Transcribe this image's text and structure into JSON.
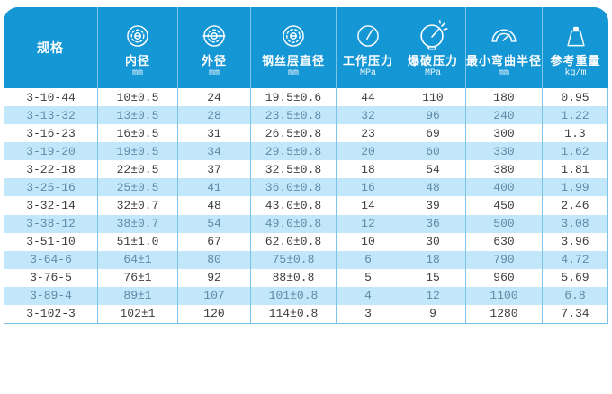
{
  "colors": {
    "header-blue": "#1596d5",
    "stripe-blue": "#c2e6fa",
    "line-blue": "#7ec3ec",
    "text-dark": "#3d3d3d",
    "text-blue": "#5d8ba5",
    "page-bg": "#ffffff"
  },
  "table": {
    "columns": [
      {
        "label": "规格",
        "unit": "",
        "icon": "none"
      },
      {
        "label": "内径",
        "unit": "mm",
        "icon": "inner-diameter-icon"
      },
      {
        "label": "外径",
        "unit": "mm",
        "icon": "outer-diameter-icon"
      },
      {
        "label": "钢丝层直径",
        "unit": "mm",
        "icon": "wire-layer-diameter-icon"
      },
      {
        "label": "工作压力",
        "unit": "MPa",
        "icon": "working-pressure-gauge-icon"
      },
      {
        "label": "爆破压力",
        "unit": "MPa",
        "icon": "burst-pressure-gauge-icon"
      },
      {
        "label": "最小弯曲半径",
        "unit": "mm",
        "icon": "bend-radius-icon"
      },
      {
        "label": "参考重量",
        "unit": "kg/m",
        "icon": "weight-icon"
      }
    ],
    "rows": [
      [
        "3-10-44",
        "10±0.5",
        "24",
        "19.5±0.6",
        "44",
        "110",
        "180",
        "0.95"
      ],
      [
        "3-13-32",
        "13±0.5",
        "28",
        "23.5±0.8",
        "32",
        "96",
        "240",
        "1.22"
      ],
      [
        "3-16-23",
        "16±0.5",
        "31",
        "26.5±0.8",
        "23",
        "69",
        "300",
        "1.3"
      ],
      [
        "3-19-20",
        "19±0.5",
        "34",
        "29.5±0.8",
        "20",
        "60",
        "330",
        "1.62"
      ],
      [
        "3-22-18",
        "22±0.5",
        "37",
        "32.5±0.8",
        "18",
        "54",
        "380",
        "1.81"
      ],
      [
        "3-25-16",
        "25±0.5",
        "41",
        "36.0±0.8",
        "16",
        "48",
        "400",
        "1.99"
      ],
      [
        "3-32-14",
        "32±0.7",
        "48",
        "43.0±0.8",
        "14",
        "39",
        "450",
        "2.46"
      ],
      [
        "3-38-12",
        "38±0.7",
        "54",
        "49.0±0.8",
        "12",
        "36",
        "500",
        "3.08"
      ],
      [
        "3-51-10",
        "51±1.0",
        "67",
        "62.0±0.8",
        "10",
        "30",
        "630",
        "3.96"
      ],
      [
        "3-64-6",
        "64±1",
        "80",
        "75±0.8",
        "6",
        "18",
        "790",
        "4.72"
      ],
      [
        "3-76-5",
        "76±1",
        "92",
        "88±0.8",
        "5",
        "15",
        "960",
        "5.69"
      ],
      [
        "3-89-4",
        "89±1",
        "107",
        "101±0.8",
        "4",
        "12",
        "1100",
        "6.8"
      ],
      [
        "3-102-3",
        "102±1",
        "120",
        "114±0.8",
        "3",
        "9",
        "1280",
        "7.34"
      ]
    ]
  }
}
